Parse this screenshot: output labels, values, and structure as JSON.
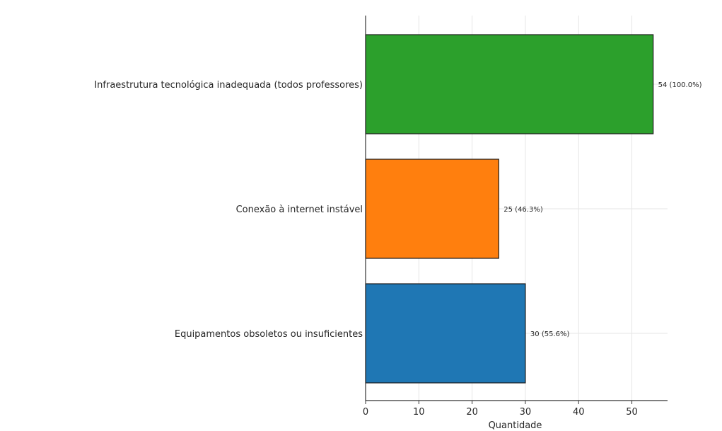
{
  "chart_data": {
    "type": "bar",
    "orientation": "horizontal",
    "categories": [
      "Infraestrutura tecnológica inadequada (todos professores)",
      "Conexão à internet instável",
      "Equipamentos obsoletos ou insuficientes"
    ],
    "values": [
      54,
      25,
      30
    ],
    "data_labels": [
      "54 (100.0%)",
      "25 (46.3%)",
      "30 (55.6%)"
    ],
    "colors": [
      "#2ca02c",
      "#ff7f0e",
      "#1f77b4"
    ],
    "title": "",
    "xlabel": "Quantidade",
    "ylabel": "",
    "xlim": [
      0,
      56.7
    ],
    "xticks": [
      0,
      10,
      20,
      30,
      40,
      50
    ],
    "grid": true
  }
}
